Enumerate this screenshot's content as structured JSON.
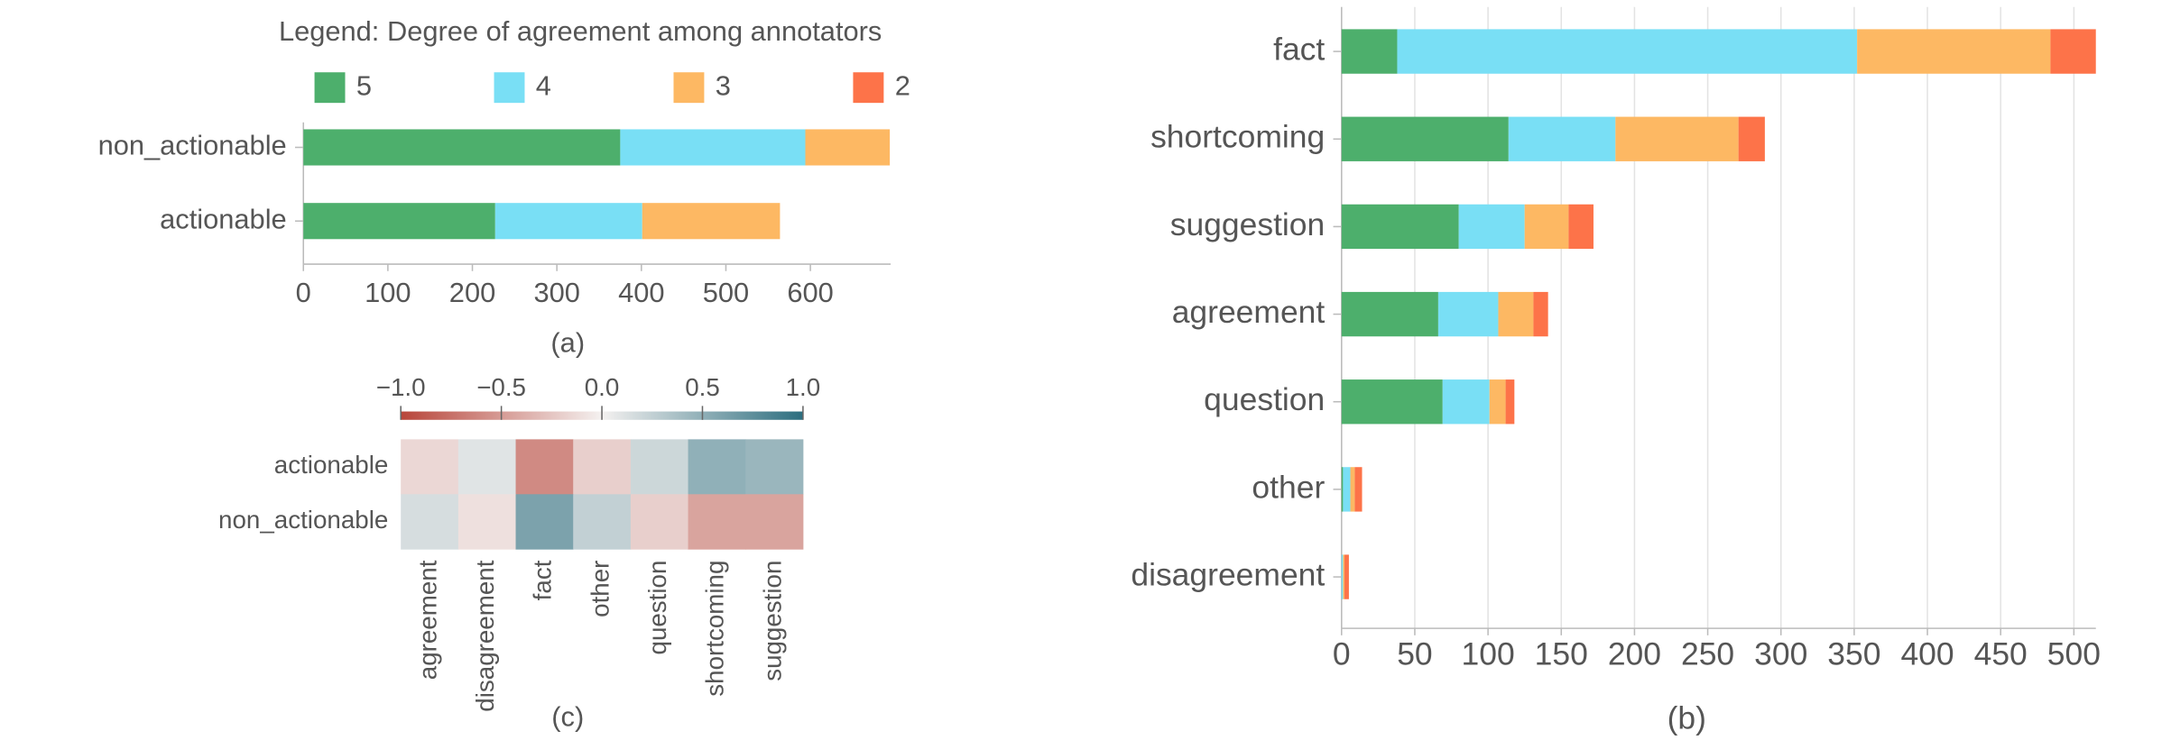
{
  "chart_data": [
    {
      "type": "bar",
      "orientation": "horizontal",
      "stacked": true,
      "title": "Legend: Degree of agreement among annotators",
      "caption": "(a)",
      "categories": [
        "non_actionable",
        "actionable"
      ],
      "series": [
        {
          "name": "5",
          "color": "#4daf6c",
          "values": [
            375,
            227
          ]
        },
        {
          "name": "4",
          "color": "#79dff5",
          "values": [
            219,
            174
          ]
        },
        {
          "name": "3",
          "color": "#fdb863",
          "values": [
            100,
            163
          ]
        },
        {
          "name": "2",
          "color": "#fd7349",
          "values": [
            0,
            0
          ]
        }
      ],
      "xlim": [
        0,
        695
      ],
      "xticks": [
        0,
        100,
        200,
        300,
        400,
        500,
        600
      ],
      "grid": false
    },
    {
      "type": "bar",
      "orientation": "horizontal",
      "stacked": true,
      "caption": "(b)",
      "categories": [
        "fact",
        "shortcoming",
        "suggestion",
        "agreement",
        "question",
        "other",
        "disagreement"
      ],
      "series": [
        {
          "color": "#4daf6c",
          "values": [
            38,
            114,
            80,
            66,
            69,
            1,
            0
          ]
        },
        {
          "color": "#79dff5",
          "values": [
            314,
            73,
            45,
            41,
            32,
            5,
            1
          ]
        },
        {
          "color": "#fdb863",
          "values": [
            132,
            84,
            30,
            24,
            11,
            3,
            1
          ]
        },
        {
          "color": "#fd7349",
          "values": [
            31,
            18,
            17,
            10,
            6,
            5,
            3
          ]
        }
      ],
      "xlim": [
        0,
        515
      ],
      "xticks": [
        0,
        50,
        100,
        150,
        200,
        250,
        300,
        350,
        400,
        450,
        500
      ],
      "grid": true
    },
    {
      "type": "heatmap",
      "caption": "(c)",
      "rows": [
        "actionable",
        "non_actionable"
      ],
      "columns": [
        "agreement",
        "disagreement",
        "fact",
        "other",
        "question",
        "shortcoming",
        "suggestion"
      ],
      "values": [
        [
          -0.15,
          0.1,
          -0.6,
          -0.2,
          0.2,
          0.5,
          0.45
        ],
        [
          0.15,
          -0.1,
          0.6,
          0.25,
          -0.2,
          -0.45,
          -0.45
        ]
      ],
      "zlim": [
        -1,
        1
      ],
      "zticks": [
        {
          "value": -1,
          "label": "−1.0"
        },
        {
          "value": -0.5,
          "label": "−0.5"
        },
        {
          "value": 0,
          "label": "0.0"
        },
        0.5,
        {
          "value": 1,
          "label": "1.0"
        }
      ],
      "colors": [
        "#b8453a",
        "#f4f1f0",
        "#2c6e7f"
      ]
    }
  ]
}
